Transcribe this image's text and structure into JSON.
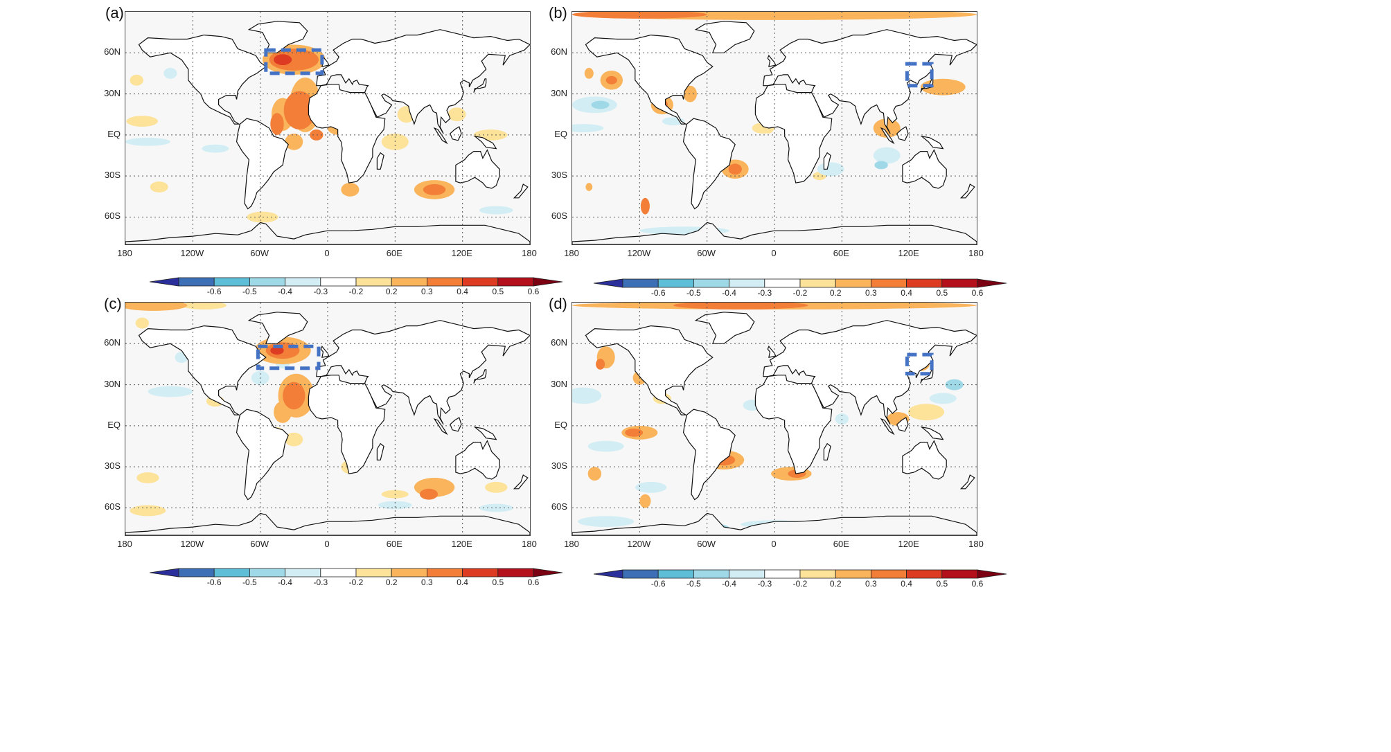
{
  "panels": [
    {
      "label": "(a)",
      "box_lon": [
        -55,
        -5
      ],
      "box_lat": [
        45,
        62
      ]
    },
    {
      "label": "(b)",
      "box_lon": [
        118,
        140
      ],
      "box_lat": [
        36,
        52
      ]
    },
    {
      "label": "(c)",
      "box_lon": [
        -62,
        -8
      ],
      "box_lat": [
        42,
        58
      ]
    },
    {
      "label": "(d)",
      "box_lon": [
        118,
        140
      ],
      "box_lat": [
        38,
        52
      ]
    }
  ],
  "y_ticks": [
    "60N",
    "30N",
    "EQ",
    "30S",
    "60S"
  ],
  "x_ticks": [
    "180",
    "120W",
    "60W",
    "0",
    "60E",
    "120E",
    "180"
  ],
  "colorbar": {
    "labels": [
      "-0.6",
      "-0.5",
      "-0.4",
      "-0.3",
      "-0.2",
      "0.2",
      "0.3",
      "0.4",
      "0.5",
      "0.6"
    ],
    "colors": [
      "#2b2f9c",
      "#3d6fb6",
      "#5ebed8",
      "#9fd8e6",
      "#d2eef4",
      "#ffffff",
      "#fde29a",
      "#f9b45c",
      "#f27e38",
      "#dd3c22",
      "#b4101c",
      "#7a0012"
    ]
  },
  "colors": {
    "warm1": "#fde29a",
    "warm2": "#f9b45c",
    "warm3": "#f27e38",
    "warm4": "#dd3c22",
    "cool1": "#d2eef4",
    "cool2": "#9fd8e6",
    "cool3": "#5ebed8",
    "box": "#4472c4"
  }
}
